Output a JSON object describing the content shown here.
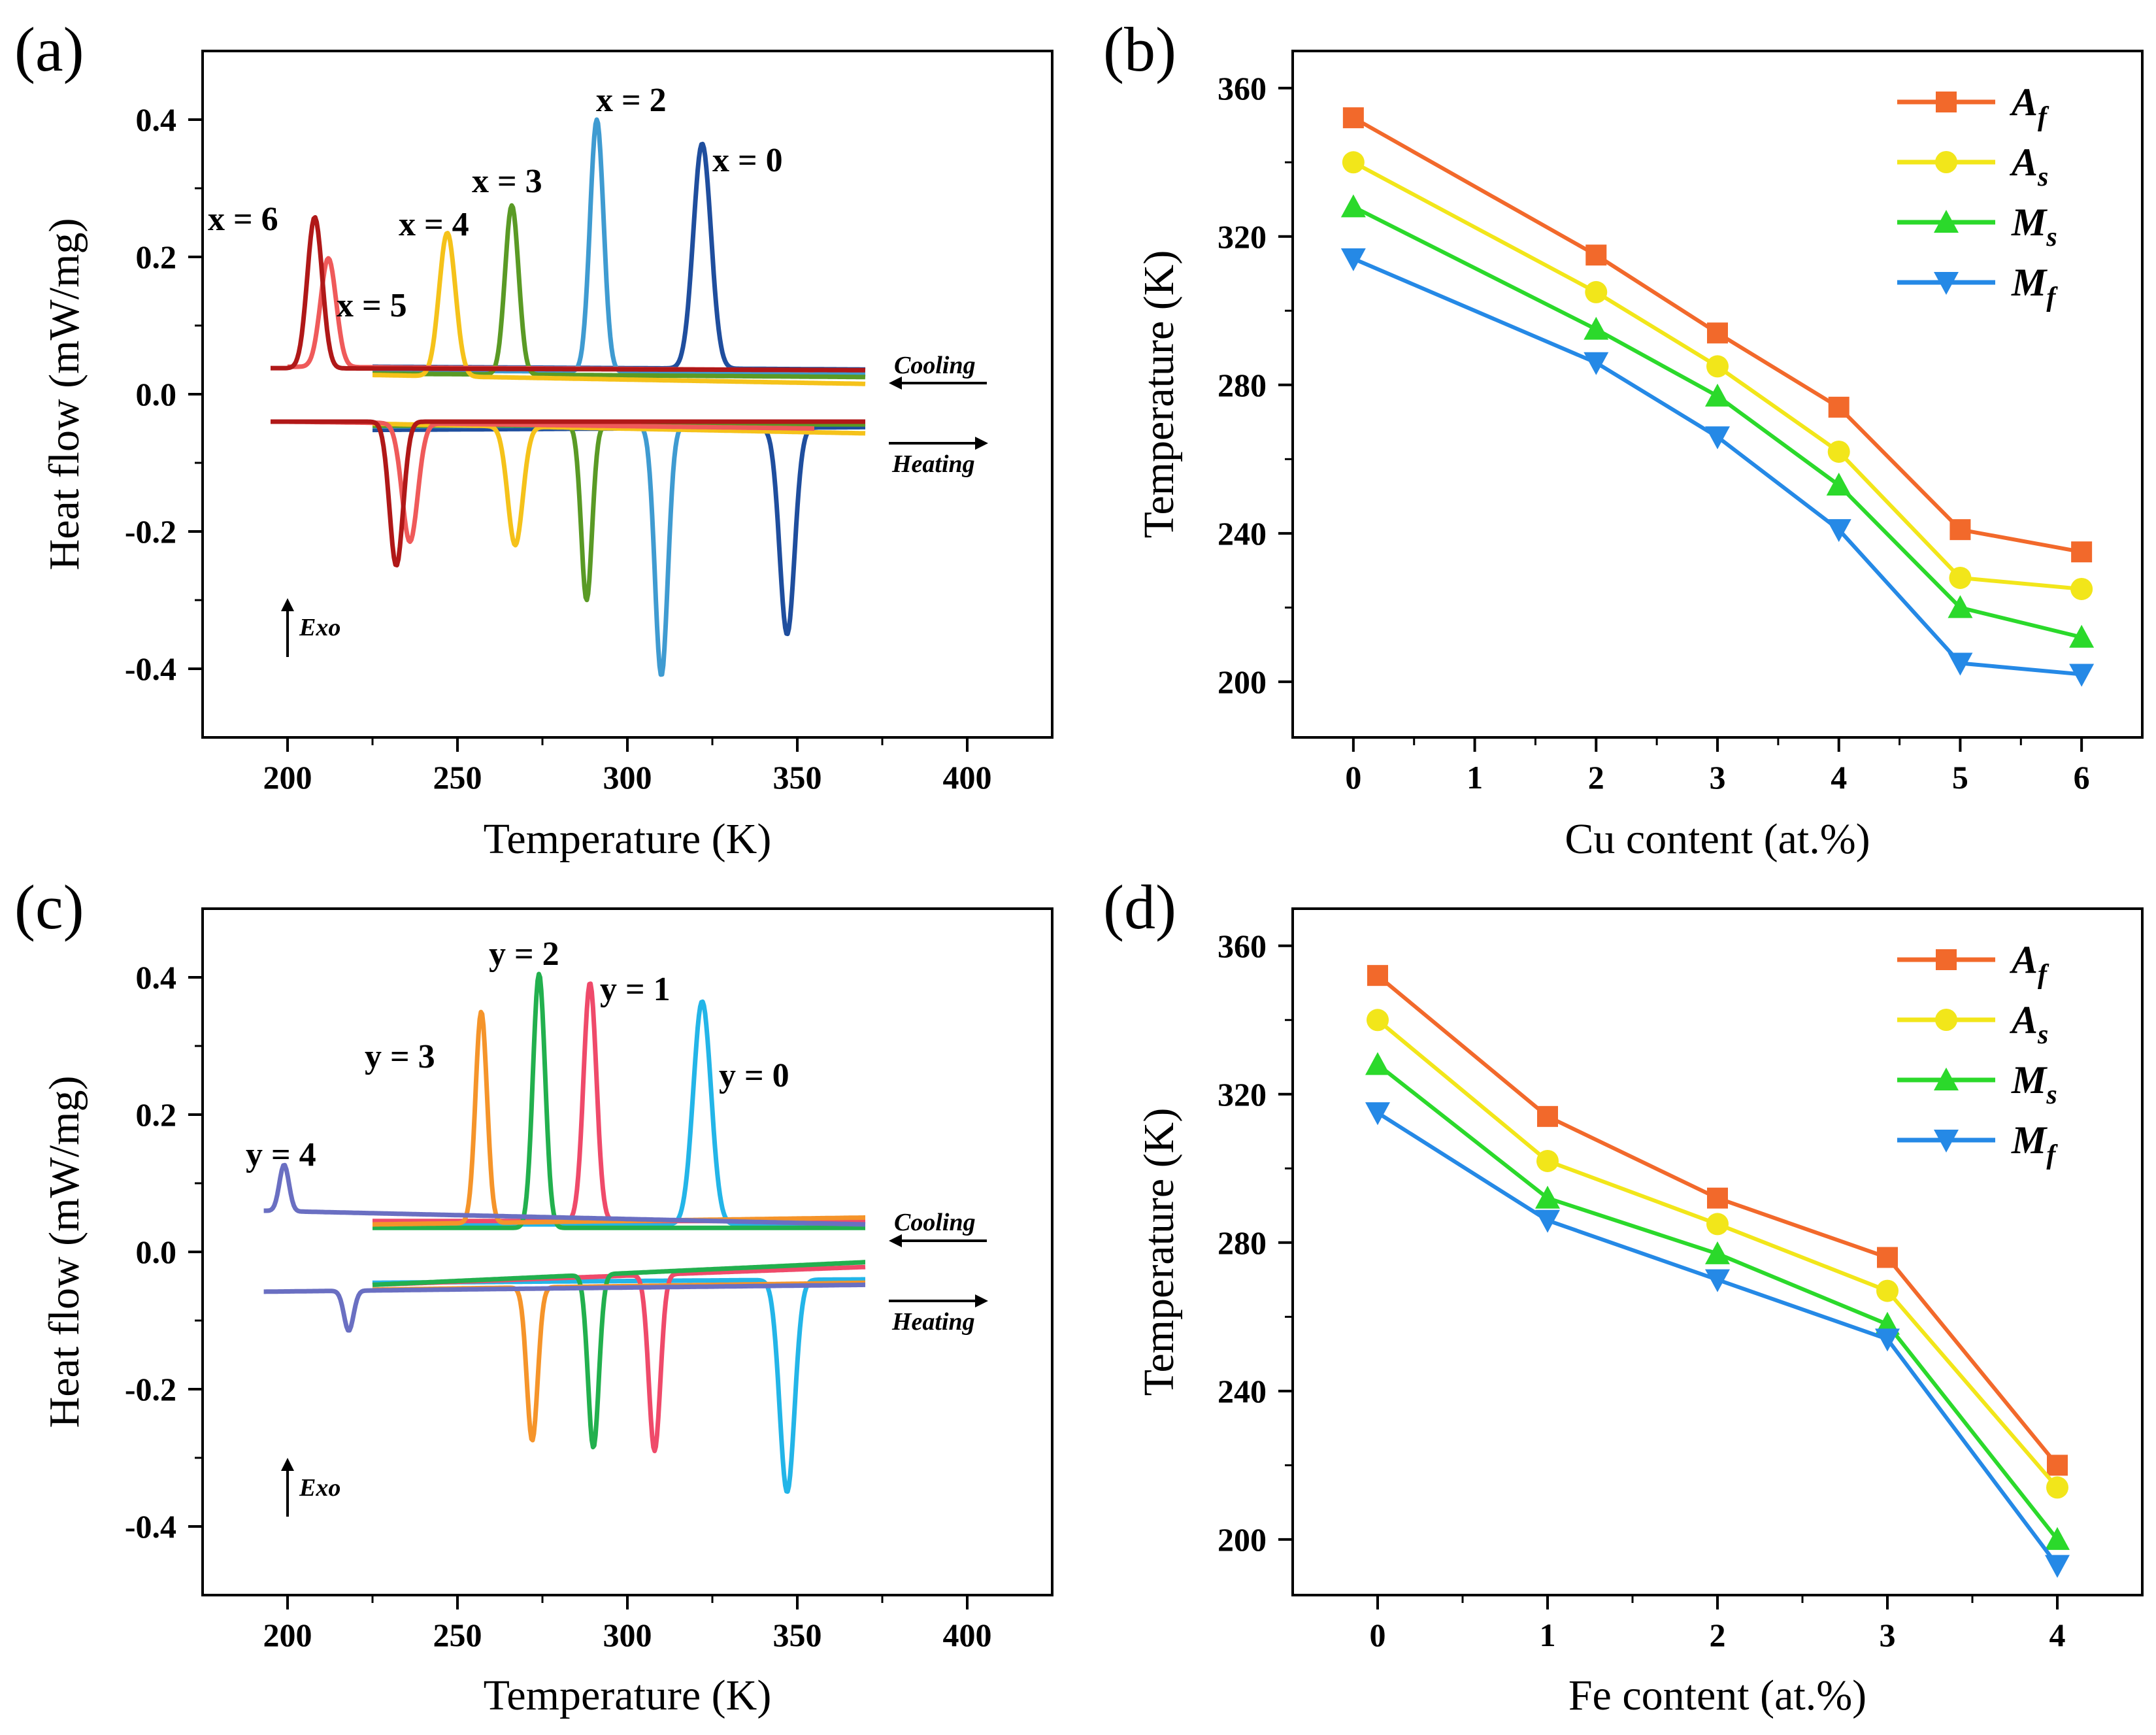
{
  "chart_data": [
    {
      "panel": "(a)",
      "type": "line",
      "xlabel": "Temperature (K)",
      "ylabel": "Heat flow (mW/mg)",
      "xlim": [
        175,
        425
      ],
      "ylim": [
        -0.5,
        0.5
      ],
      "xticks": [
        "200",
        "250",
        "300",
        "350",
        "400"
      ],
      "yticks": [
        "-0.4",
        "-0.2",
        "0.0",
        "0.2",
        "0.4"
      ],
      "direction_labels": {
        "cooling": "Cooling",
        "heating": "Heating",
        "exo": "Exo"
      },
      "series": [
        {
          "name": "x = 0",
          "color": "#1f4e9e",
          "x0": 225,
          "x1": 370,
          "cool_base": [
            0.04,
            0.036
          ],
          "heat_base": [
            -0.052,
            -0.048
          ],
          "cool_peak": {
            "x": 322,
            "y": 0.365,
            "w": 2.6
          },
          "heat_peak": {
            "x": 347,
            "y": -0.35,
            "w": 2.2
          }
        },
        {
          "name": "x = 2",
          "color": "#3f9bd1",
          "x0": 225,
          "x1": 370,
          "cool_base": [
            0.035,
            0.03
          ],
          "heat_base": [
            -0.047,
            -0.043
          ],
          "cool_peak": {
            "x": 291,
            "y": 0.4,
            "w": 2.0
          },
          "heat_peak": {
            "x": 310,
            "y": -0.41,
            "w": 1.9
          }
        },
        {
          "name": "x = 3",
          "color": "#5a9a25",
          "x0": 225,
          "x1": 370,
          "cool_base": [
            0.03,
            0.025
          ],
          "heat_base": [
            -0.046,
            -0.044
          ],
          "cool_peak": {
            "x": 266,
            "y": 0.275,
            "w": 2.0
          },
          "heat_peak": {
            "x": 288,
            "y": -0.3,
            "w": 1.6
          }
        },
        {
          "name": "x = 4",
          "color": "#f5c21a",
          "x0": 225,
          "x1": 370,
          "cool_base": [
            0.028,
            0.015
          ],
          "heat_base": [
            -0.043,
            -0.057
          ],
          "cool_peak": {
            "x": 247,
            "y": 0.235,
            "w": 2.4
          },
          "heat_peak": {
            "x": 267,
            "y": -0.22,
            "w": 2.2
          }
        },
        {
          "name": "x = 5",
          "color": "#ef5a5a",
          "x0": 200,
          "x1": 355,
          "cool_base": [
            0.04,
            0.035
          ],
          "heat_base": [
            -0.04,
            -0.05
          ],
          "cool_peak": {
            "x": 212,
            "y": 0.198,
            "w": 2.3
          },
          "heat_peak": {
            "x": 236,
            "y": -0.215,
            "w": 2.3
          }
        },
        {
          "name": "x = 6",
          "color": "#b01818",
          "x0": 195,
          "x1": 370,
          "cool_base": [
            0.038,
            0.035
          ],
          "heat_base": [
            -0.04,
            -0.04
          ],
          "cool_peak": {
            "x": 208,
            "y": 0.258,
            "w": 2.2
          },
          "heat_peak": {
            "x": 232,
            "y": -0.25,
            "w": 2.0
          }
        }
      ],
      "annotations": [
        "x = 2",
        "x = 0",
        "x = 3",
        "x = 4",
        "x = 6",
        "x = 5"
      ]
    },
    {
      "panel": "(b)",
      "type": "line",
      "xlabel": "Cu content (at.%)",
      "ylabel": "Temperature (K)",
      "xlim": [
        -0.5,
        6.5
      ],
      "ylim": [
        185,
        370
      ],
      "xticks": [
        0,
        1,
        2,
        3,
        4,
        5,
        6
      ],
      "yticks": [
        200,
        240,
        280,
        320,
        360
      ],
      "x": [
        0,
        2,
        3,
        4,
        5,
        6
      ],
      "series": [
        {
          "name": "A",
          "sub": "f",
          "color": "#f2692b",
          "marker": "square",
          "values": [
            352,
            315,
            294,
            274,
            241,
            235
          ]
        },
        {
          "name": "A",
          "sub": "s",
          "color": "#f2e61a",
          "marker": "circle",
          "values": [
            340,
            305,
            285,
            262,
            228,
            225
          ]
        },
        {
          "name": "M",
          "sub": "s",
          "color": "#2bd92b",
          "marker": "triangle-up",
          "values": [
            328,
            295,
            277,
            253,
            220,
            212
          ]
        },
        {
          "name": "M",
          "sub": "f",
          "color": "#2589e6",
          "marker": "triangle-down",
          "values": [
            314,
            286,
            266,
            241,
            205,
            202
          ]
        }
      ]
    },
    {
      "panel": "(c)",
      "type": "line",
      "xlabel": "Temperature (K)",
      "ylabel": "Heat flow (mW/mg)",
      "xlim": [
        175,
        425
      ],
      "ylim": [
        -0.5,
        0.5
      ],
      "xticks": [
        "200",
        "250",
        "300",
        "350",
        "400"
      ],
      "yticks": [
        "-0.4",
        "-0.2",
        "0.0",
        "0.2",
        "0.4"
      ],
      "direction_labels": {
        "cooling": "Cooling",
        "heating": "Heating",
        "exo": "Exo"
      },
      "series": [
        {
          "name": "y = 0",
          "color": "#23b5e8",
          "x0": 225,
          "x1": 370,
          "cool_base": [
            0.04,
            0.04
          ],
          "heat_base": [
            -0.045,
            -0.04
          ],
          "cool_peak": {
            "x": 322,
            "y": 0.365,
            "w": 2.6
          },
          "heat_peak": {
            "x": 347,
            "y": -0.35,
            "w": 2.2
          }
        },
        {
          "name": "y = 1",
          "color": "#ef4a6a",
          "x0": 225,
          "x1": 370,
          "cool_base": [
            0.045,
            0.045
          ],
          "heat_base": [
            -0.048,
            -0.022
          ],
          "cool_peak": {
            "x": 289,
            "y": 0.392,
            "w": 1.9
          },
          "heat_peak": {
            "x": 308,
            "y": -0.29,
            "w": 1.7
          }
        },
        {
          "name": "y = 2",
          "color": "#22b04e",
          "x0": 225,
          "x1": 370,
          "cool_base": [
            0.035,
            0.035
          ],
          "heat_base": [
            -0.048,
            -0.015
          ],
          "cool_peak": {
            "x": 274,
            "y": 0.405,
            "w": 1.8
          },
          "heat_peak": {
            "x": 290,
            "y": -0.285,
            "w": 1.6
          }
        },
        {
          "name": "y = 3",
          "color": "#f5942a",
          "x0": 225,
          "x1": 370,
          "cool_base": [
            0.04,
            0.05
          ],
          "heat_base": [
            -0.055,
            -0.045
          ],
          "cool_peak": {
            "x": 257,
            "y": 0.35,
            "w": 1.7
          },
          "heat_peak": {
            "x": 272,
            "y": -0.275,
            "w": 1.6
          }
        },
        {
          "name": "y = 4",
          "color": "#6a6fc2",
          "x0": 193,
          "x1": 370,
          "cool_base": [
            0.06,
            0.04
          ],
          "heat_base": [
            -0.058,
            -0.048
          ],
          "cool_peak": {
            "x": 199,
            "y": 0.127,
            "w": 1.4
          },
          "heat_peak": {
            "x": 218,
            "y": -0.115,
            "w": 1.4
          }
        }
      ],
      "annotations": [
        "y = 2",
        "y = 1",
        "y = 3",
        "y = 0",
        "y = 4"
      ]
    },
    {
      "panel": "(d)",
      "type": "line",
      "xlabel": "Fe content (at.%)",
      "ylabel": "Temperature (K)",
      "xlim": [
        -0.5,
        4.5
      ],
      "ylim": [
        185,
        370
      ],
      "xticks": [
        0,
        1,
        2,
        3,
        4
      ],
      "yticks": [
        200,
        240,
        280,
        320,
        360
      ],
      "x": [
        0,
        1,
        2,
        3,
        4
      ],
      "series": [
        {
          "name": "A",
          "sub": "f",
          "color": "#f2692b",
          "marker": "square",
          "values": [
            352,
            314,
            292,
            276,
            220
          ]
        },
        {
          "name": "A",
          "sub": "s",
          "color": "#f2e61a",
          "marker": "circle",
          "values": [
            340,
            302,
            285,
            267,
            214
          ]
        },
        {
          "name": "M",
          "sub": "s",
          "color": "#2bd92b",
          "marker": "triangle-up",
          "values": [
            328,
            292,
            277,
            258,
            200
          ]
        },
        {
          "name": "M",
          "sub": "f",
          "color": "#2589e6",
          "marker": "triangle-down",
          "values": [
            315,
            286,
            270,
            254,
            193
          ]
        }
      ]
    }
  ]
}
